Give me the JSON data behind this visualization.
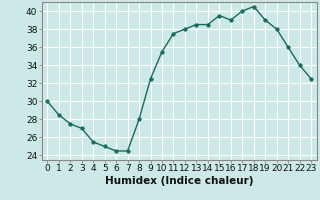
{
  "x": [
    0,
    1,
    2,
    3,
    4,
    5,
    6,
    7,
    8,
    9,
    10,
    11,
    12,
    13,
    14,
    15,
    16,
    17,
    18,
    19,
    20,
    21,
    22,
    23
  ],
  "y": [
    30,
    28.5,
    27.5,
    27,
    25.5,
    25,
    24.5,
    24.5,
    28,
    32.5,
    35.5,
    37.5,
    38,
    38.5,
    38.5,
    39.5,
    39,
    40,
    40.5,
    39,
    38,
    36,
    34,
    32.5
  ],
  "line_color": "#1a6b5a",
  "marker_color": "#1a6b5a",
  "bg_color": "#cce9e7",
  "grid_color": "#ffffff",
  "xlabel": "Humidex (Indice chaleur)",
  "ylabel": "",
  "ylim": [
    23.5,
    41
  ],
  "xlim": [
    -0.5,
    23.5
  ],
  "yticks": [
    24,
    26,
    28,
    30,
    32,
    34,
    36,
    38,
    40
  ],
  "xticks": [
    0,
    1,
    2,
    3,
    4,
    5,
    6,
    7,
    8,
    9,
    10,
    11,
    12,
    13,
    14,
    15,
    16,
    17,
    18,
    19,
    20,
    21,
    22,
    23
  ],
  "tick_fontsize": 6.5,
  "xlabel_fontsize": 7.5,
  "marker_size": 2.5,
  "line_width": 1.0
}
